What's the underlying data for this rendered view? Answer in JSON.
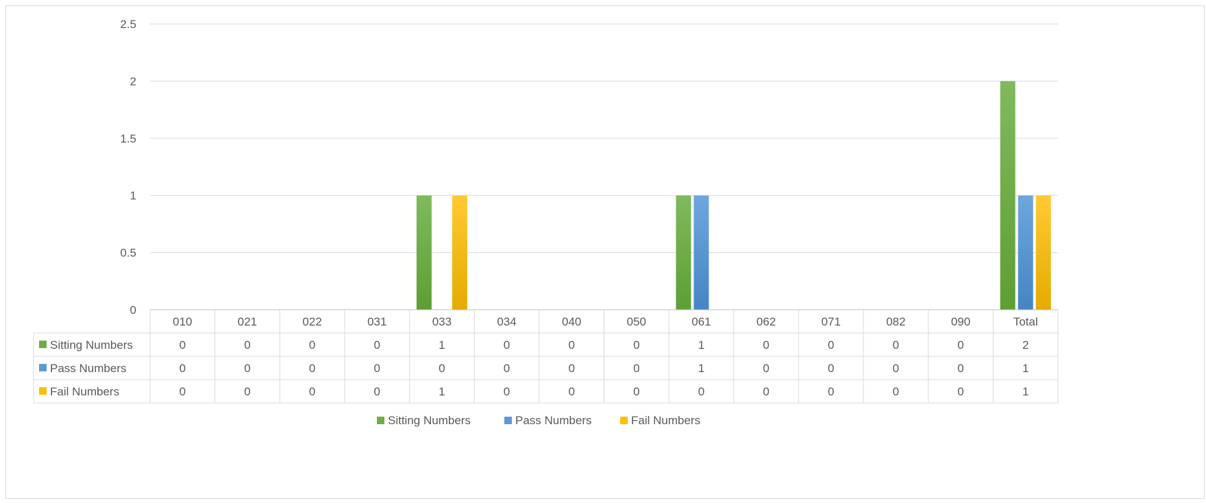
{
  "chart_data": {
    "type": "bar",
    "categories": [
      "010",
      "021",
      "022",
      "031",
      "033",
      "034",
      "040",
      "050",
      "061",
      "062",
      "071",
      "082",
      "090",
      "Total"
    ],
    "series": [
      {
        "name": "Sitting Numbers",
        "values": [
          0,
          0,
          0,
          0,
          1,
          0,
          0,
          0,
          1,
          0,
          0,
          0,
          0,
          2
        ],
        "color": "#70ad47"
      },
      {
        "name": "Pass Numbers",
        "values": [
          0,
          0,
          0,
          0,
          0,
          0,
          0,
          0,
          1,
          0,
          0,
          0,
          0,
          1
        ],
        "color": "#5b9bd5"
      },
      {
        "name": "Fail Numbers",
        "values": [
          0,
          0,
          0,
          0,
          1,
          0,
          0,
          0,
          0,
          0,
          0,
          0,
          0,
          1
        ],
        "color": "#ffc000"
      }
    ],
    "y_ticks": [
      "0",
      "0.5",
      "1",
      "1.5",
      "2",
      "2.5"
    ],
    "ylim": [
      0,
      2.5
    ],
    "grid": true,
    "legend_position": "bottom",
    "data_table": true,
    "title": "",
    "xlabel": "",
    "ylabel": ""
  }
}
